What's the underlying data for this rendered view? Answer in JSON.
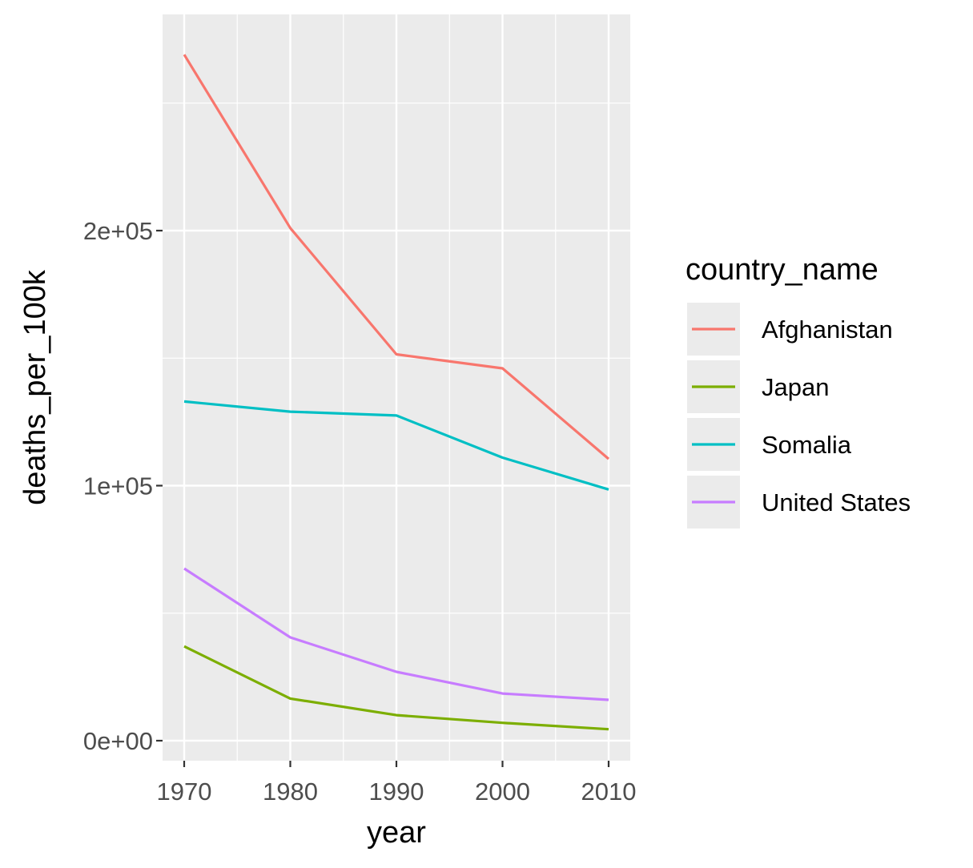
{
  "chart_data": {
    "type": "line",
    "title": "",
    "xlabel": "year",
    "ylabel": "deaths_per_100k",
    "x": [
      1970,
      1980,
      1990,
      2000,
      2010
    ],
    "x_ticks": [
      "1970",
      "1980",
      "1990",
      "2000",
      "2010"
    ],
    "xlim": [
      1970,
      2010
    ],
    "y_ticks": [
      {
        "value": 0,
        "label": "0e+00"
      },
      {
        "value": 100000,
        "label": "1e+05"
      },
      {
        "value": 200000,
        "label": "2e+05"
      }
    ],
    "ylim": [
      0,
      270000
    ],
    "grid": true,
    "legend": {
      "title": "country_name",
      "placement": "right"
    },
    "series": [
      {
        "name": "Afghanistan",
        "color": "#F8766D",
        "values": [
          269000,
          201000,
          151500,
          146000,
          110500
        ]
      },
      {
        "name": "Japan",
        "color": "#7CAE00",
        "values": [
          37000,
          16500,
          10000,
          7000,
          4500
        ]
      },
      {
        "name": "Somalia",
        "color": "#00BFC4",
        "values": [
          133000,
          129000,
          127500,
          111000,
          98500
        ]
      },
      {
        "name": "United States",
        "color": "#C77CFF",
        "values": [
          67500,
          40500,
          27000,
          18500,
          16000
        ]
      }
    ]
  }
}
